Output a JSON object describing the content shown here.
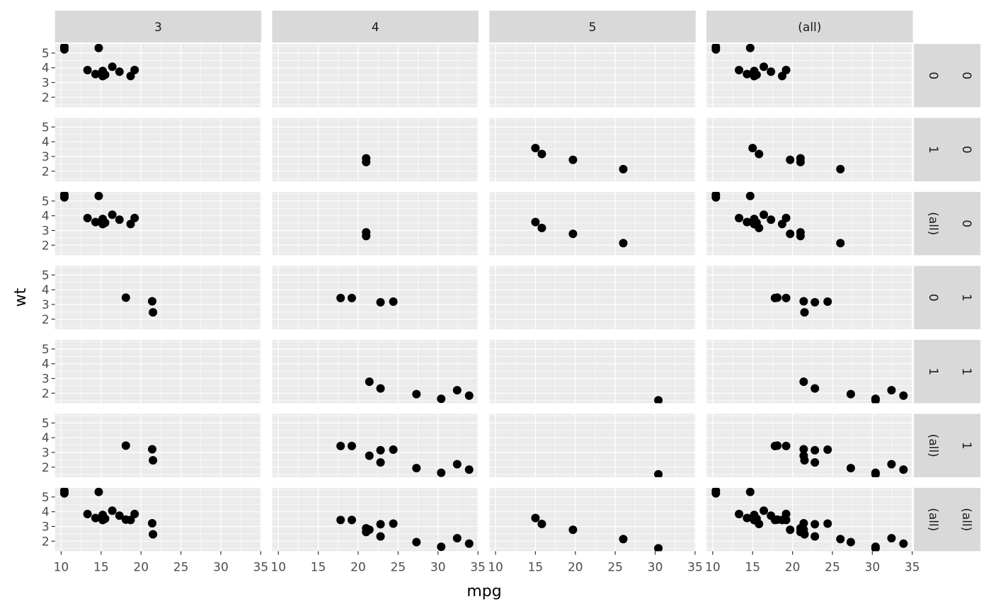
{
  "chart_data": {
    "type": "scatter",
    "layout": "facet_grid with margins",
    "xlabel": "mpg",
    "ylabel": "wt",
    "xlim": [
      9.225,
      35.075
    ],
    "ylim": [
      1.317,
      5.62
    ],
    "xticks": [
      10,
      15,
      20,
      25,
      30,
      35
    ],
    "yticks": [
      2,
      3,
      4,
      5
    ],
    "grid": true,
    "colors": {
      "panel": "#EBEBEB",
      "strip": "#D9D9D9",
      "point": "#000000",
      "grid": "#FFFFFF",
      "axis_text": "#4D4D4D"
    },
    "columns": [
      {
        "label": "3",
        "gear": 3
      },
      {
        "label": "4",
        "gear": 4
      },
      {
        "label": "5",
        "gear": 5
      },
      {
        "label": "(all)",
        "gear": "all"
      }
    ],
    "rows": [
      {
        "am_label": "0",
        "vs_label": "0",
        "am": 0,
        "vs": 0
      },
      {
        "am_label": "1",
        "vs_label": "0",
        "am": 1,
        "vs": 0
      },
      {
        "am_label": "(all)",
        "vs_label": "0",
        "am": "all",
        "vs": 0
      },
      {
        "am_label": "0",
        "vs_label": "1",
        "am": 0,
        "vs": 1
      },
      {
        "am_label": "1",
        "vs_label": "1",
        "am": 1,
        "vs": 1
      },
      {
        "am_label": "(all)",
        "vs_label": "1",
        "am": "all",
        "vs": 1
      },
      {
        "am_label": "(all)",
        "vs_label": "(all)",
        "am": "all",
        "vs": "all"
      }
    ],
    "points": [
      {
        "mpg": 21.0,
        "wt": 2.62,
        "vs": 0,
        "am": 1,
        "gear": 4
      },
      {
        "mpg": 21.0,
        "wt": 2.875,
        "vs": 0,
        "am": 1,
        "gear": 4
      },
      {
        "mpg": 22.8,
        "wt": 2.32,
        "vs": 1,
        "am": 1,
        "gear": 4
      },
      {
        "mpg": 21.4,
        "wt": 3.215,
        "vs": 1,
        "am": 0,
        "gear": 3
      },
      {
        "mpg": 18.7,
        "wt": 3.44,
        "vs": 0,
        "am": 0,
        "gear": 3
      },
      {
        "mpg": 18.1,
        "wt": 3.46,
        "vs": 1,
        "am": 0,
        "gear": 3
      },
      {
        "mpg": 14.3,
        "wt": 3.57,
        "vs": 0,
        "am": 0,
        "gear": 3
      },
      {
        "mpg": 24.4,
        "wt": 3.19,
        "vs": 1,
        "am": 0,
        "gear": 4
      },
      {
        "mpg": 22.8,
        "wt": 3.15,
        "vs": 1,
        "am": 0,
        "gear": 4
      },
      {
        "mpg": 19.2,
        "wt": 3.44,
        "vs": 1,
        "am": 0,
        "gear": 4
      },
      {
        "mpg": 17.8,
        "wt": 3.44,
        "vs": 1,
        "am": 0,
        "gear": 4
      },
      {
        "mpg": 16.4,
        "wt": 4.07,
        "vs": 0,
        "am": 0,
        "gear": 3
      },
      {
        "mpg": 17.3,
        "wt": 3.73,
        "vs": 0,
        "am": 0,
        "gear": 3
      },
      {
        "mpg": 15.2,
        "wt": 3.78,
        "vs": 0,
        "am": 0,
        "gear": 3
      },
      {
        "mpg": 10.4,
        "wt": 5.25,
        "vs": 0,
        "am": 0,
        "gear": 3
      },
      {
        "mpg": 10.4,
        "wt": 5.424,
        "vs": 0,
        "am": 0,
        "gear": 3
      },
      {
        "mpg": 14.7,
        "wt": 5.345,
        "vs": 0,
        "am": 0,
        "gear": 3
      },
      {
        "mpg": 32.4,
        "wt": 2.2,
        "vs": 1,
        "am": 1,
        "gear": 4
      },
      {
        "mpg": 30.4,
        "wt": 1.615,
        "vs": 1,
        "am": 1,
        "gear": 4
      },
      {
        "mpg": 33.9,
        "wt": 1.835,
        "vs": 1,
        "am": 1,
        "gear": 4
      },
      {
        "mpg": 21.5,
        "wt": 2.465,
        "vs": 1,
        "am": 0,
        "gear": 3
      },
      {
        "mpg": 15.5,
        "wt": 3.52,
        "vs": 0,
        "am": 0,
        "gear": 3
      },
      {
        "mpg": 15.2,
        "wt": 3.435,
        "vs": 0,
        "am": 0,
        "gear": 3
      },
      {
        "mpg": 13.3,
        "wt": 3.84,
        "vs": 0,
        "am": 0,
        "gear": 3
      },
      {
        "mpg": 19.2,
        "wt": 3.845,
        "vs": 0,
        "am": 0,
        "gear": 3
      },
      {
        "mpg": 27.3,
        "wt": 1.935,
        "vs": 1,
        "am": 1,
        "gear": 4
      },
      {
        "mpg": 26.0,
        "wt": 2.14,
        "vs": 0,
        "am": 1,
        "gear": 5
      },
      {
        "mpg": 30.4,
        "wt": 1.513,
        "vs": 1,
        "am": 1,
        "gear": 5
      },
      {
        "mpg": 15.8,
        "wt": 3.17,
        "vs": 0,
        "am": 1,
        "gear": 5
      },
      {
        "mpg": 19.7,
        "wt": 2.77,
        "vs": 0,
        "am": 1,
        "gear": 5
      },
      {
        "mpg": 15.0,
        "wt": 3.57,
        "vs": 0,
        "am": 1,
        "gear": 5
      },
      {
        "mpg": 21.4,
        "wt": 2.78,
        "vs": 1,
        "am": 1,
        "gear": 4
      }
    ]
  }
}
